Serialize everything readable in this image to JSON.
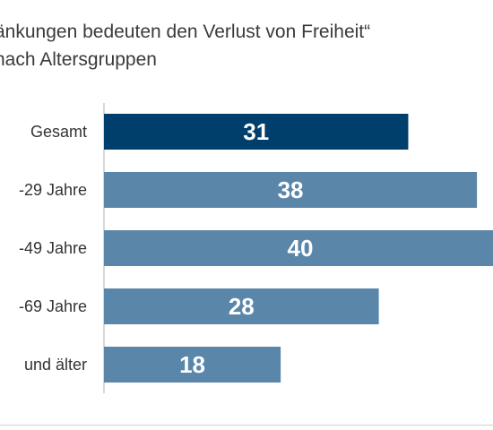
{
  "title_lines": [
    "änkungen bedeuten den Verlust von Freiheit“",
    "nach Altersgruppen"
  ],
  "colors": {
    "highlight": "#003f6b",
    "bar": "#5a86aa",
    "axis": "#b0b0b0"
  },
  "chart_data": {
    "type": "bar",
    "orientation": "horizontal",
    "categories": [
      "Gesamt",
      "-29 Jahre",
      "-49 Jahre",
      "-69 Jahre",
      "und älter"
    ],
    "values": [
      31,
      38,
      40,
      28,
      18
    ],
    "highlight_index": 0,
    "xlim": [
      0,
      40
    ],
    "grid": false
  }
}
